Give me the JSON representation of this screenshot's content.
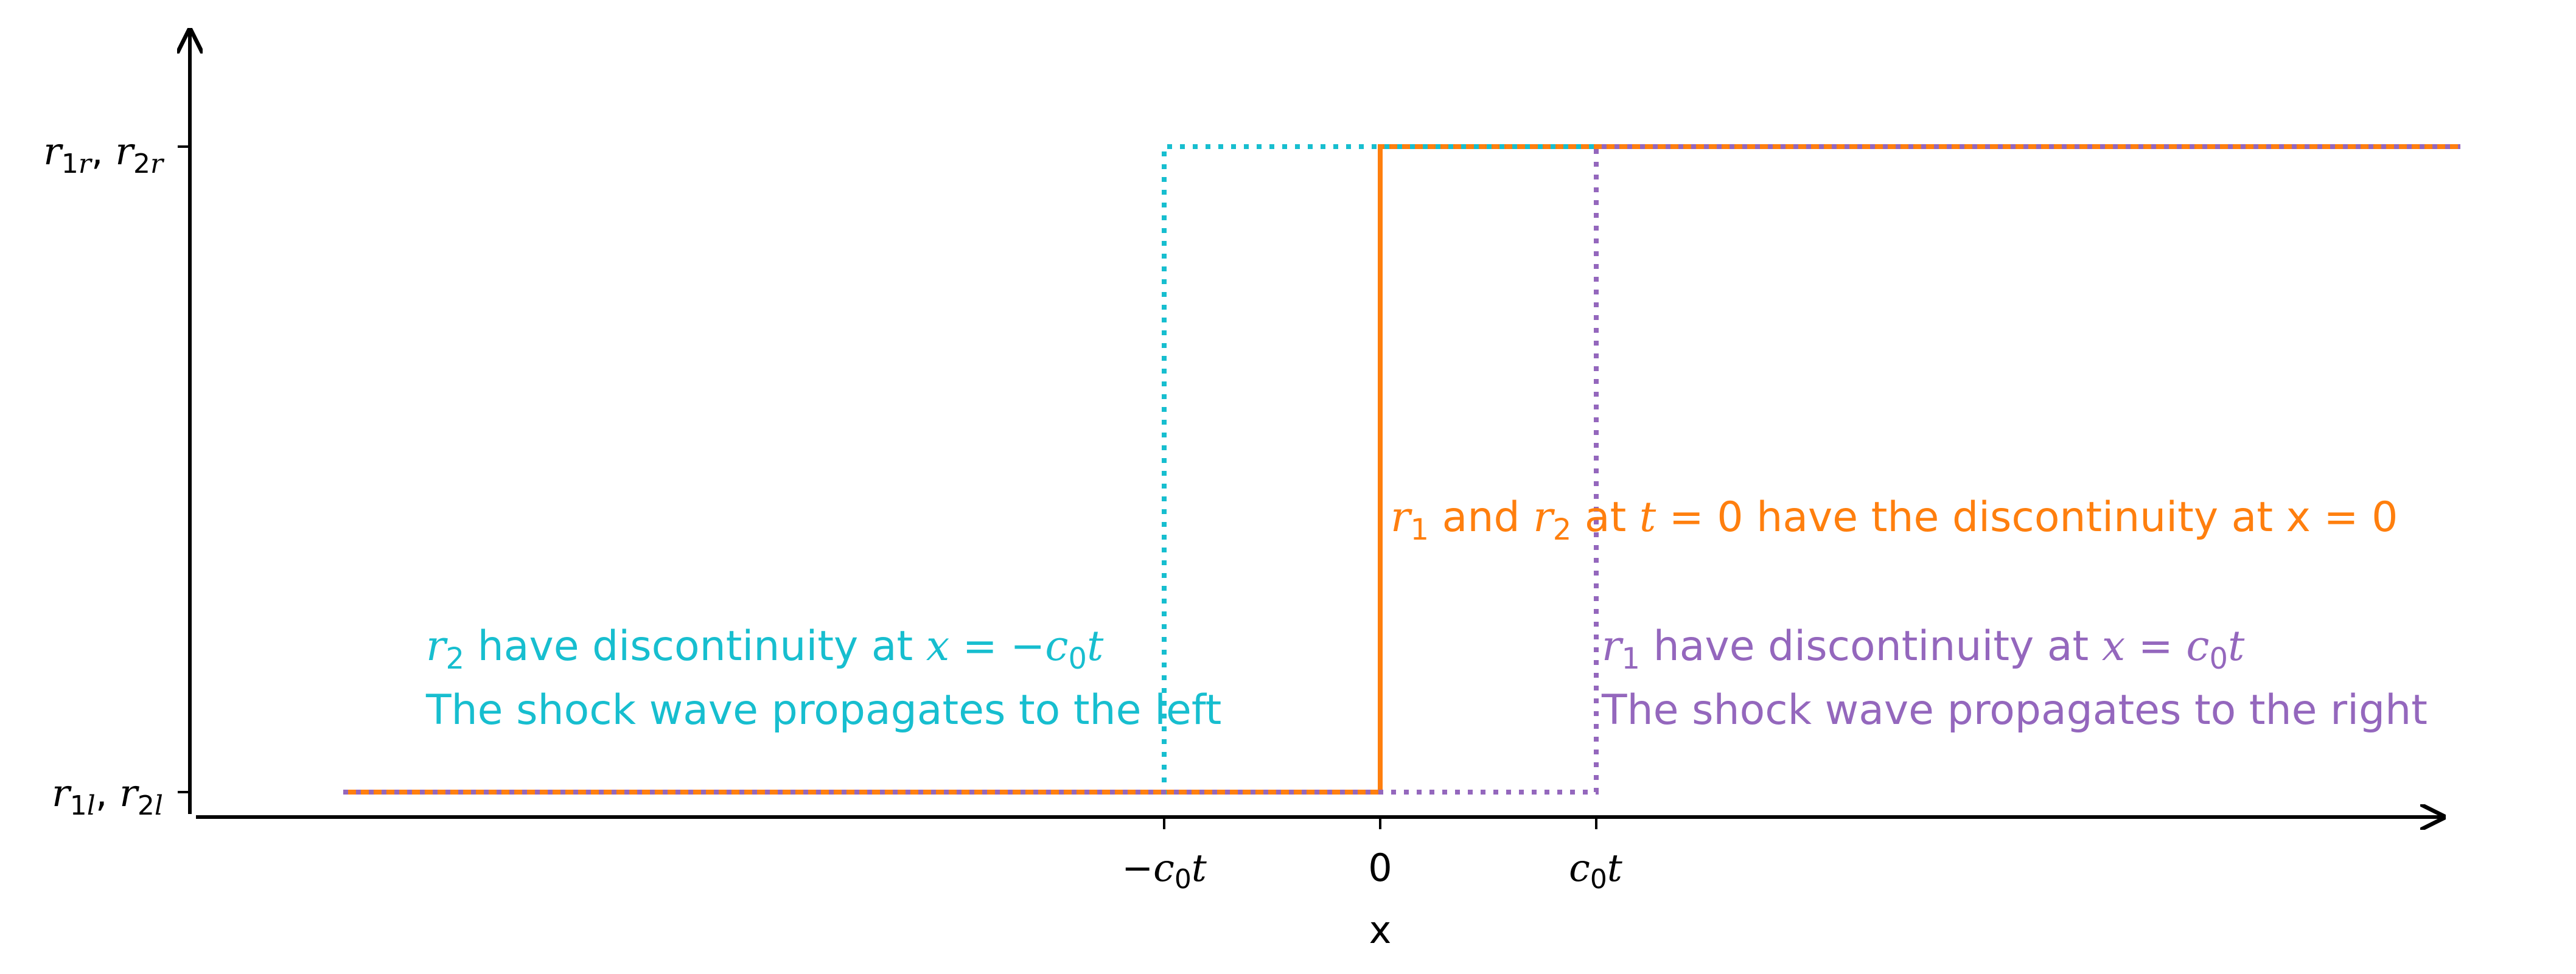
{
  "chart_data": {
    "type": "line",
    "title": "",
    "xlabel": "x",
    "ylabel": "",
    "grid": false,
    "xlim": [
      -5.3,
      5.0
    ],
    "ylim": [
      -0.05,
      1.15
    ],
    "y_low": 0,
    "y_high": 1,
    "x_start": -4.8,
    "x_end": 5.0,
    "x_ticks": [
      {
        "value": -1,
        "label_text": "−c₀t"
      },
      {
        "value": 0,
        "label_text": "0"
      },
      {
        "value": 1,
        "label_text": "c₀t"
      }
    ],
    "y_ticks": [
      {
        "value": 1,
        "label_text": "r₁ᵣ, r₂ᵣ"
      },
      {
        "value": 0,
        "label_text": "r₁ₗ, r₂ₗ"
      }
    ],
    "series": [
      {
        "id": "t0",
        "style": "solid",
        "color": "#ff7f0e",
        "jump_at": 0,
        "label_text": "r₁ and r₂ at t = 0 have the discontinuity at x = 0"
      },
      {
        "id": "r2",
        "style": "dotted",
        "color": "#17becf",
        "jump_at": -1,
        "label_text": "r₂ have discontinuity at x = −c₀t"
      },
      {
        "id": "r1",
        "style": "dotted",
        "color": "#9467bd",
        "jump_at": 1,
        "label_text": "r₁ have discontinuity at x = c₀t"
      }
    ],
    "annotations": [
      {
        "id": "t0",
        "text": "r₁ and r₂ at t = 0 have the discontinuity at x = 0",
        "color": "#ff7f0e"
      },
      {
        "id": "r2_line1",
        "text": "r₂ have discontinuity at x = −c₀t",
        "color": "#17becf"
      },
      {
        "id": "r2_line2",
        "text": "The shock wave propagates to the left",
        "color": "#17becf"
      },
      {
        "id": "r1_line1",
        "text": "r₁ have discontinuity at x = c₀t",
        "color": "#9467bd"
      },
      {
        "id": "r1_line2",
        "text": "The shock wave propagates to the right",
        "color": "#9467bd"
      }
    ]
  },
  "annot_parts": {
    "and": " and ",
    "at": " at ",
    "t": "t",
    "t0_rest": " = 0 have the discontinuity at x = 0",
    "have_disc": " have discontinuity at ",
    "x_eq": "x",
    "eq": " = ",
    "minus": "−",
    "c": "c",
    "zero": "0",
    "r": "r",
    "one": "1",
    "two": "2",
    "left_line2": "The shock wave propagates to the left",
    "right_line2": "The shock wave propagates to the right"
  },
  "ytick_parts": {
    "r": "r",
    "r1": "1",
    "r2": "2",
    "sub_r": "r",
    "sub_l": "l",
    "comma": ", "
  }
}
